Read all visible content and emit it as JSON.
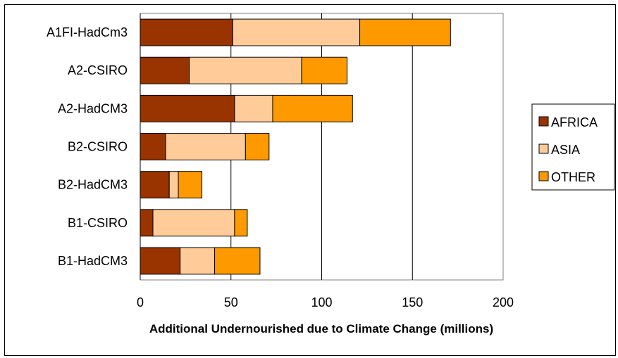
{
  "chart_data": {
    "type": "bar",
    "orientation": "horizontal",
    "stacked": true,
    "title": "",
    "xlabel": "Additional Undernourished due to Climate Change (millions)",
    "ylabel": "",
    "xlim": [
      0,
      200
    ],
    "xticks": [
      0,
      50,
      100,
      150,
      200
    ],
    "grid": true,
    "legend_position": "right",
    "categories": [
      "A1FI-HadCm3",
      "A2-CSIRO",
      "A2-HadCM3",
      "B2-CSIRO",
      "B2-HadCM3",
      "B1-CSIRO",
      "B1-HadCM3"
    ],
    "series": [
      {
        "name": "AFRICA",
        "color": "#993300",
        "values": [
          51,
          27,
          52,
          14,
          16,
          7,
          22
        ]
      },
      {
        "name": "ASIA",
        "color": "#ffcc99",
        "values": [
          70,
          62,
          21,
          44,
          5,
          45,
          19
        ]
      },
      {
        "name": "OTHER",
        "color": "#ff9900",
        "values": [
          50,
          25,
          44,
          13,
          13,
          7,
          25
        ]
      }
    ]
  }
}
